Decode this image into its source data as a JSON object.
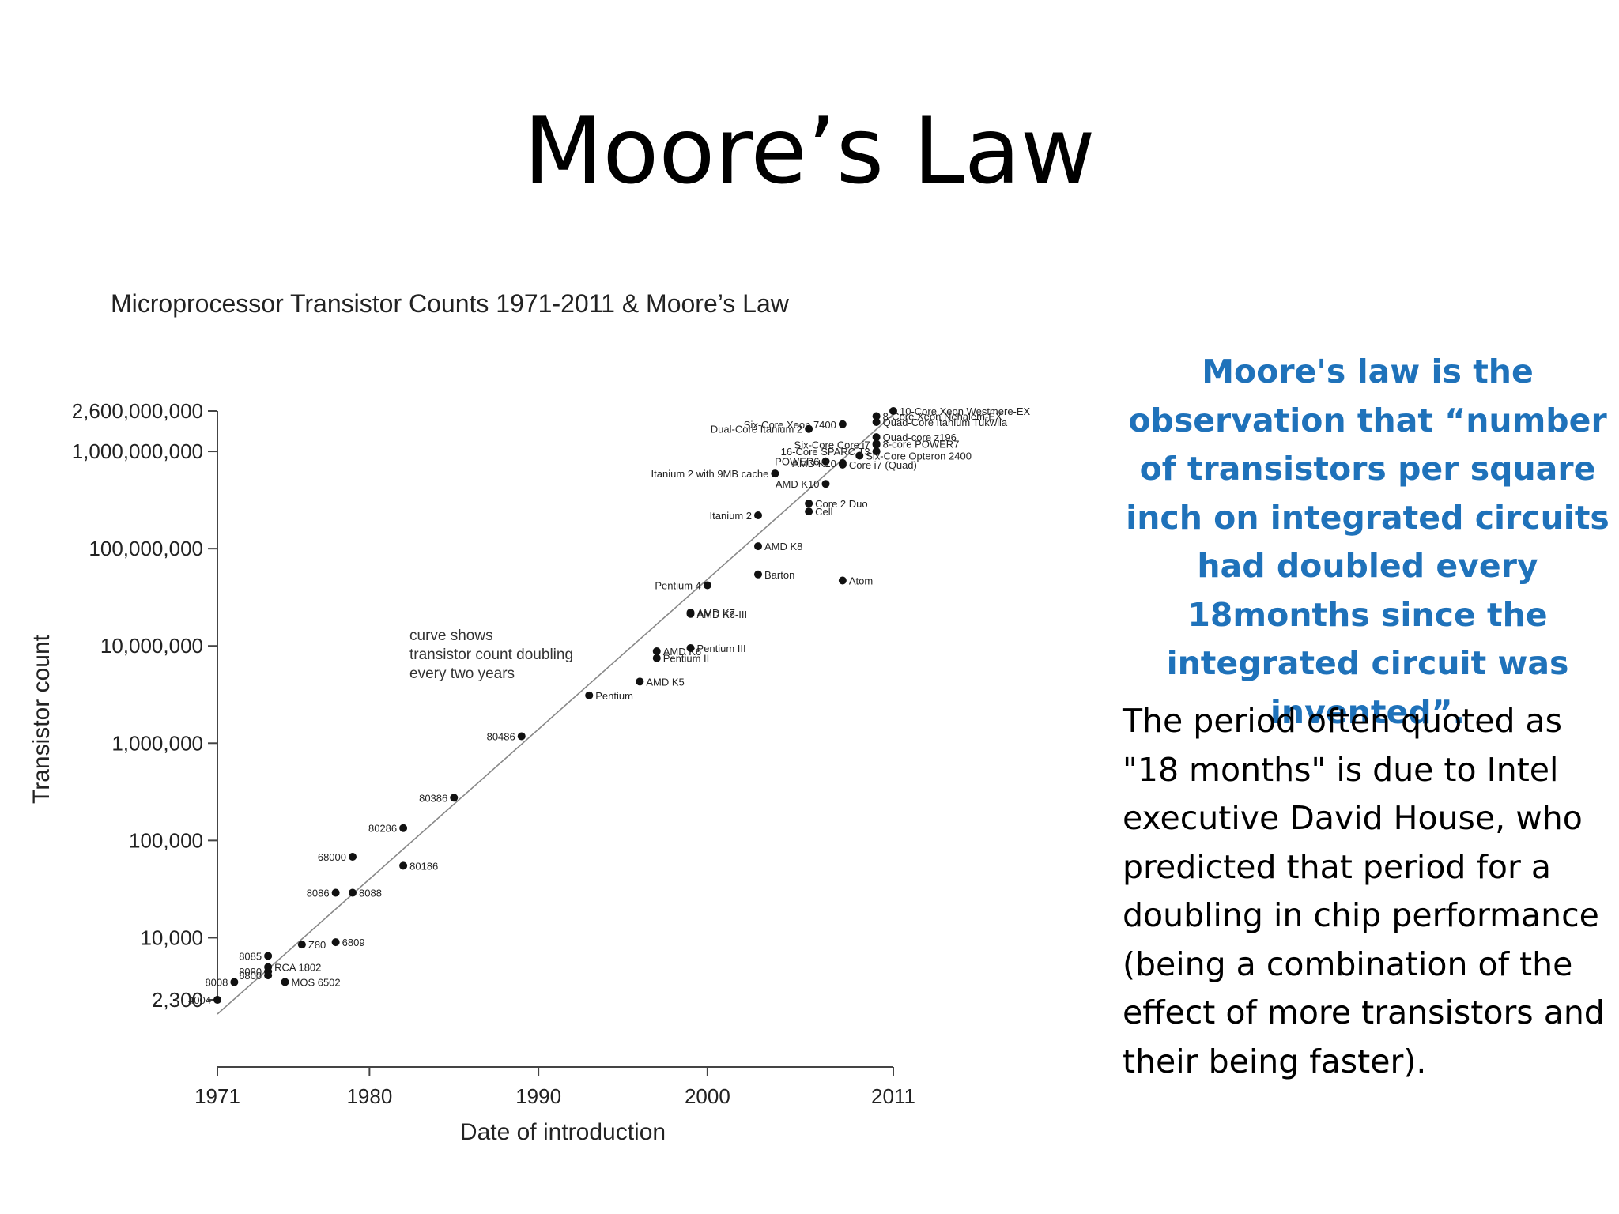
{
  "slide": {
    "title": "Moore’s Law",
    "blue_text": "Moore's law is the observation that “number of transistors per square inch on integrated circuits had doubled every 18months since the integrated circuit was invented”.",
    "body_text": "The period often quoted as \"18 months\" is due to Intel executive David House,  who predicted that period for a doubling in chip performance (being a combination  of the effect of more transistors and their being faster)."
  },
  "chart_data": {
    "type": "scatter",
    "title": "Microprocessor Transistor Counts 1971-2011 & Moore’s Law",
    "xlabel": "Date of introduction",
    "ylabel": "Transistor count",
    "y_scale": "log",
    "xlim": [
      1971,
      2011
    ],
    "ylim": [
      2300,
      2600000000
    ],
    "x_ticks": [
      1971,
      1980,
      1990,
      2000,
      2011
    ],
    "x_tick_labels": [
      "1971",
      "1980",
      "1990",
      "2000",
      "2011"
    ],
    "y_ticks": [
      2300,
      10000,
      100000,
      1000000,
      10000000,
      100000000,
      1000000000,
      2600000000
    ],
    "y_tick_labels": [
      "2,300",
      "10,000",
      "100,000",
      "1,000,000",
      "10,000,000",
      "100,000,000",
      "1,000,000,000",
      "2,600,000,000"
    ],
    "annotation": "curve shows transistor count doubling every two years",
    "trend_line": {
      "x": [
        1971,
        2011
      ],
      "y": [
        2300,
        2400000000
      ]
    },
    "points": [
      {
        "label": "4004",
        "x": 1971,
        "y": 2300
      },
      {
        "label": "8008",
        "x": 1972,
        "y": 3500
      },
      {
        "label": "8080",
        "x": 1974,
        "y": 4500
      },
      {
        "label": "6800",
        "x": 1974,
        "y": 4100
      },
      {
        "label": "8085",
        "x": 1974,
        "y": 6500
      },
      {
        "label": "RCA 1802",
        "x": 1974,
        "y": 5000
      },
      {
        "label": "Z80",
        "x": 1976,
        "y": 8500
      },
      {
        "label": "MOS 6502",
        "x": 1975,
        "y": 3510
      },
      {
        "label": "6809",
        "x": 1978,
        "y": 9000
      },
      {
        "label": "8086",
        "x": 1978,
        "y": 29000
      },
      {
        "label": "8088",
        "x": 1979,
        "y": 29000
      },
      {
        "label": "68000",
        "x": 1979,
        "y": 68000
      },
      {
        "label": "80186",
        "x": 1982,
        "y": 55000
      },
      {
        "label": "80286",
        "x": 1982,
        "y": 134000
      },
      {
        "label": "80386",
        "x": 1985,
        "y": 275000
      },
      {
        "label": "80486",
        "x": 1989,
        "y": 1180000
      },
      {
        "label": "Pentium",
        "x": 1993,
        "y": 3100000
      },
      {
        "label": "AMD K5",
        "x": 1996,
        "y": 4300000
      },
      {
        "label": "Pentium II",
        "x": 1997,
        "y": 7500000
      },
      {
        "label": "AMD K6",
        "x": 1997,
        "y": 8800000
      },
      {
        "label": "Pentium III",
        "x": 1999,
        "y": 9500000
      },
      {
        "label": "AMD K6-III",
        "x": 1999,
        "y": 21300000
      },
      {
        "label": "AMD K7",
        "x": 1999,
        "y": 22000000
      },
      {
        "label": "Pentium 4",
        "x": 2000,
        "y": 42000000
      },
      {
        "label": "Barton",
        "x": 2003,
        "y": 54300000
      },
      {
        "label": "Atom",
        "x": 2008,
        "y": 47000000
      },
      {
        "label": "AMD K8",
        "x": 2003,
        "y": 105900000
      },
      {
        "label": "Itanium 2",
        "x": 2003,
        "y": 220000000
      },
      {
        "label": "Cell",
        "x": 2006,
        "y": 241000000
      },
      {
        "label": "Core 2 Duo",
        "x": 2006,
        "y": 291000000
      },
      {
        "label": "AMD K10",
        "x": 2007,
        "y": 463000000
      },
      {
        "label": "Itanium 2 with 9MB cache",
        "x": 2004,
        "y": 592000000
      },
      {
        "label": "POWER6",
        "x": 2007,
        "y": 789000000
      },
      {
        "label": "Core i7 (Quad)",
        "x": 2008,
        "y": 731000000
      },
      {
        "label": "AMD K10",
        "x": 2008,
        "y": 758000000
      },
      {
        "label": "Six-Core Opteron 2400",
        "x": 2009,
        "y": 904000000
      },
      {
        "label": "Dual-Core Itanium 2",
        "x": 2006,
        "y": 1700000000
      },
      {
        "label": "Six-Core Xeon 7400",
        "x": 2008,
        "y": 1900000000
      },
      {
        "label": "Six-Core Core i7",
        "x": 2010,
        "y": 1170000000
      },
      {
        "label": "8-Core Xeon Nehalem-EX",
        "x": 2010,
        "y": 2300000000
      },
      {
        "label": "Quad-Core Itanium Tukwila",
        "x": 2010,
        "y": 2000000000
      },
      {
        "label": "Quad-core z196",
        "x": 2010,
        "y": 1400000000
      },
      {
        "label": "8-core POWER7",
        "x": 2010,
        "y": 1200000000
      },
      {
        "label": "10-Core Xeon Westmere-EX",
        "x": 2011,
        "y": 2600000000
      },
      {
        "label": "16-Core SPARC T3",
        "x": 2010,
        "y": 1000000000
      }
    ]
  }
}
